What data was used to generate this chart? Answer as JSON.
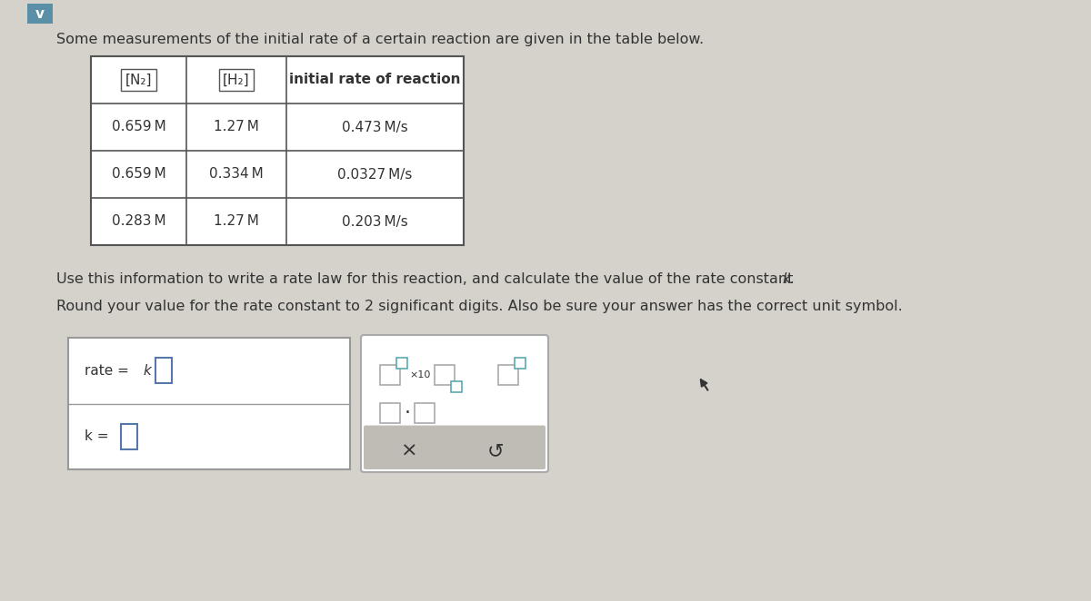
{
  "bg_color": "#d5d1cb",
  "title_text": "Some measurements of the initial rate of a certain reaction are given in the table below.",
  "title_fontsize": 11.5,
  "table_headers": [
    "[N₂]",
    "[H₂]",
    "initial rate of reaction"
  ],
  "table_rows": [
    [
      "0.659 M",
      "1.27 M",
      "0.473 M/s"
    ],
    [
      "0.659 M",
      "0.334 M",
      "0.0327 M/s"
    ],
    [
      "0.283 M",
      "1.27 M",
      "0.203 M/s"
    ]
  ],
  "info_text1": "Use this information to write a rate law for this reaction, and calculate the value of the rate constant ",
  "info_text1_italic": "k.",
  "info_text2": "Round your value for the rate constant to 2 significant digits. Also be sure your answer has the correct unit symbol.",
  "chevron_color": "#5b8fa8",
  "table_border_color": "#555555",
  "answer_border_color": "#999999",
  "keypad_border_color": "#aaaaaa",
  "keypad_bg": "#bfbbb5",
  "input_border_color": "#5577aa",
  "font_color": "#333333",
  "teal_color": "#5ba8b0"
}
